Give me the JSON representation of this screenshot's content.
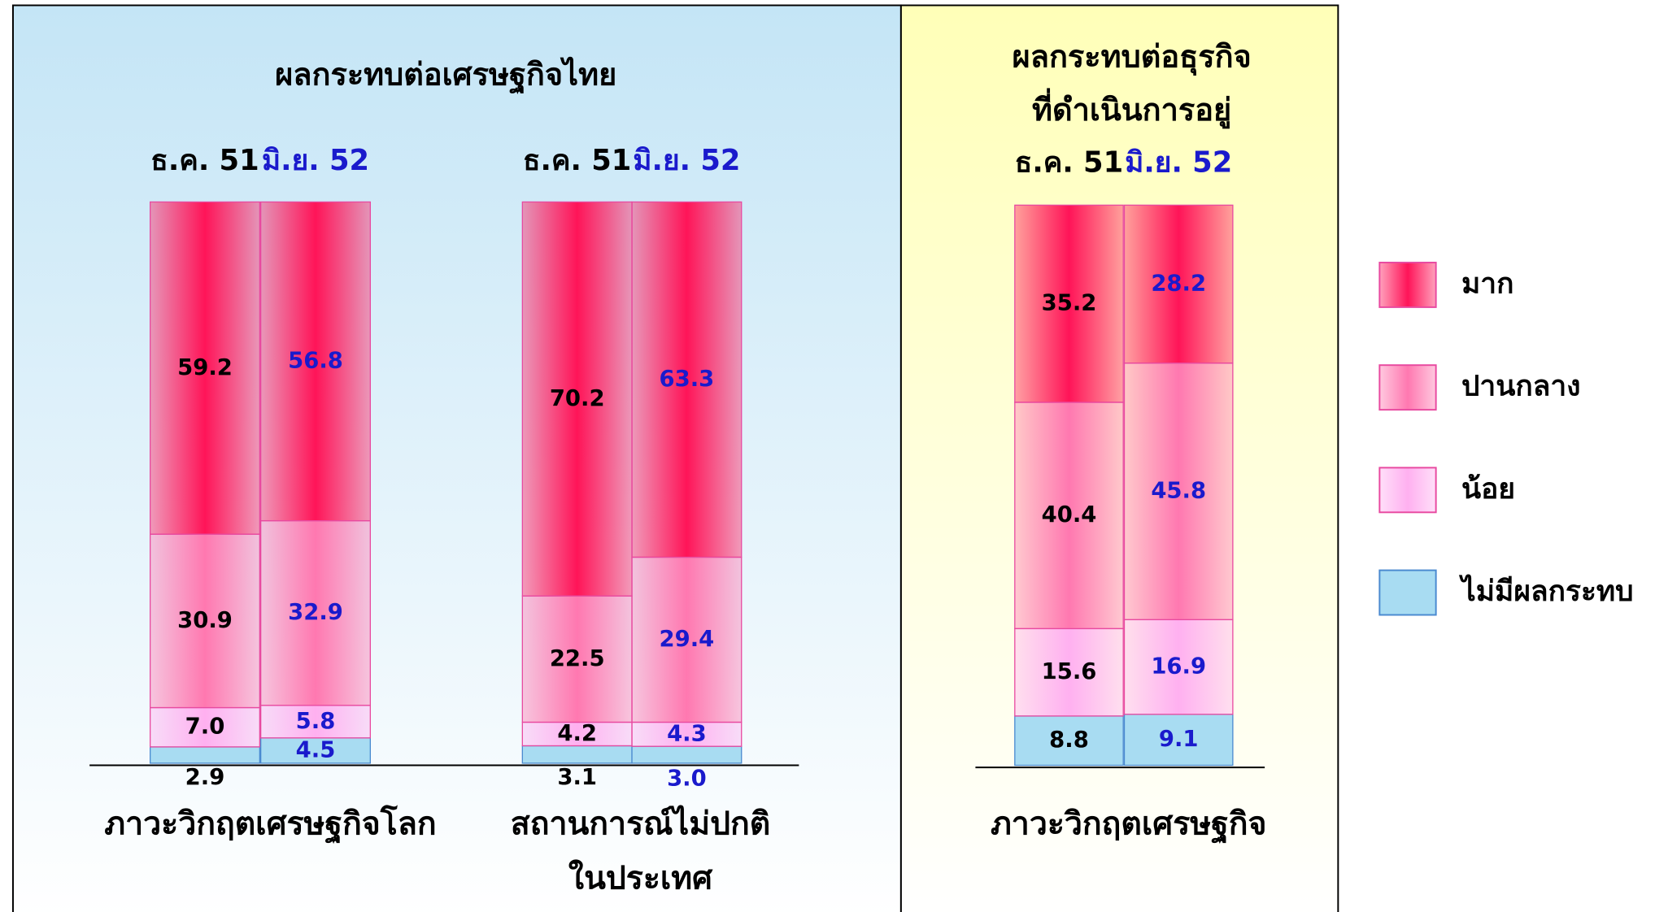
{
  "chart_data": [
    {
      "type": "stacked_bar",
      "title": "ผลกระทบต่อเศรษฐกิจไทย",
      "xlabel": [
        "ภาวะวิกฤตเศรษฐกิจโลก"
      ],
      "categories": [
        "ธ.ค. 51",
        "มิ.ย. 52"
      ],
      "ylim": [
        0,
        100
      ],
      "series": [
        {
          "name": "ไม่มีผลกระทบ",
          "color": "#a8dcf2",
          "values": [
            2.9,
            4.5
          ],
          "value_labels": [
            "2.9",
            "4.5"
          ]
        },
        {
          "name": "น้อย",
          "color": "#ffb0f0",
          "values": [
            7.0,
            5.8
          ],
          "value_labels": [
            "7.0",
            "5.8"
          ]
        },
        {
          "name": "ปานกลาง",
          "color": "#ff78b0",
          "values": [
            30.9,
            32.9
          ],
          "value_labels": [
            "30.9",
            "32.9"
          ]
        },
        {
          "name": "มาก",
          "color": "#ff1458",
          "values": [
            59.2,
            56.8
          ],
          "value_labels": [
            "59.2",
            "56.8"
          ]
        }
      ]
    },
    {
      "type": "stacked_bar",
      "xlabel": [
        "สถานการณ์ไม่ปกติ",
        "ในประเทศ"
      ],
      "categories": [
        "ธ.ค. 51",
        "มิ.ย. 52"
      ],
      "ylim": [
        0,
        100
      ],
      "series": [
        {
          "name": "ไม่มีผลกระทบ",
          "color": "#a8dcf2",
          "values": [
            3.1,
            3.0
          ],
          "value_labels": [
            "3.1",
            "3.0"
          ]
        },
        {
          "name": "น้อย",
          "color": "#ffb0f0",
          "values": [
            4.2,
            4.3
          ],
          "value_labels": [
            "4.2",
            "4.3"
          ]
        },
        {
          "name": "ปานกลาง",
          "color": "#ff78b0",
          "values": [
            22.5,
            29.4
          ],
          "value_labels": [
            "22.5",
            "29.4"
          ]
        },
        {
          "name": "มาก",
          "color": "#ff1458",
          "values": [
            70.2,
            63.3
          ],
          "value_labels": [
            "70.2",
            "63.3"
          ]
        }
      ]
    },
    {
      "type": "stacked_bar",
      "title": [
        "ผลกระทบต่อธุรกิจ",
        "ที่ดำเนินการอยู่"
      ],
      "xlabel": [
        "ภาวะวิกฤตเศรษฐกิจ"
      ],
      "categories": [
        "ธ.ค. 51",
        "มิ.ย. 52"
      ],
      "ylim": [
        0,
        100
      ],
      "series": [
        {
          "name": "ไม่มีผลกระทบ",
          "color": "#a8dcf2",
          "values": [
            8.8,
            9.1
          ],
          "value_labels": [
            "8.8",
            "9.1"
          ]
        },
        {
          "name": "น้อย",
          "color": "#ffb0f0",
          "values": [
            15.6,
            16.9
          ],
          "value_labels": [
            "15.6",
            "16.9"
          ]
        },
        {
          "name": "ปานกลาง",
          "color": "#ff78b0",
          "values": [
            40.4,
            45.8
          ],
          "value_labels": [
            "40.4",
            "45.8"
          ]
        },
        {
          "name": "มาก",
          "color": "#ff1458",
          "values": [
            35.2,
            28.2
          ],
          "value_labels": [
            "35.2",
            "28.2"
          ]
        }
      ]
    }
  ]
}
